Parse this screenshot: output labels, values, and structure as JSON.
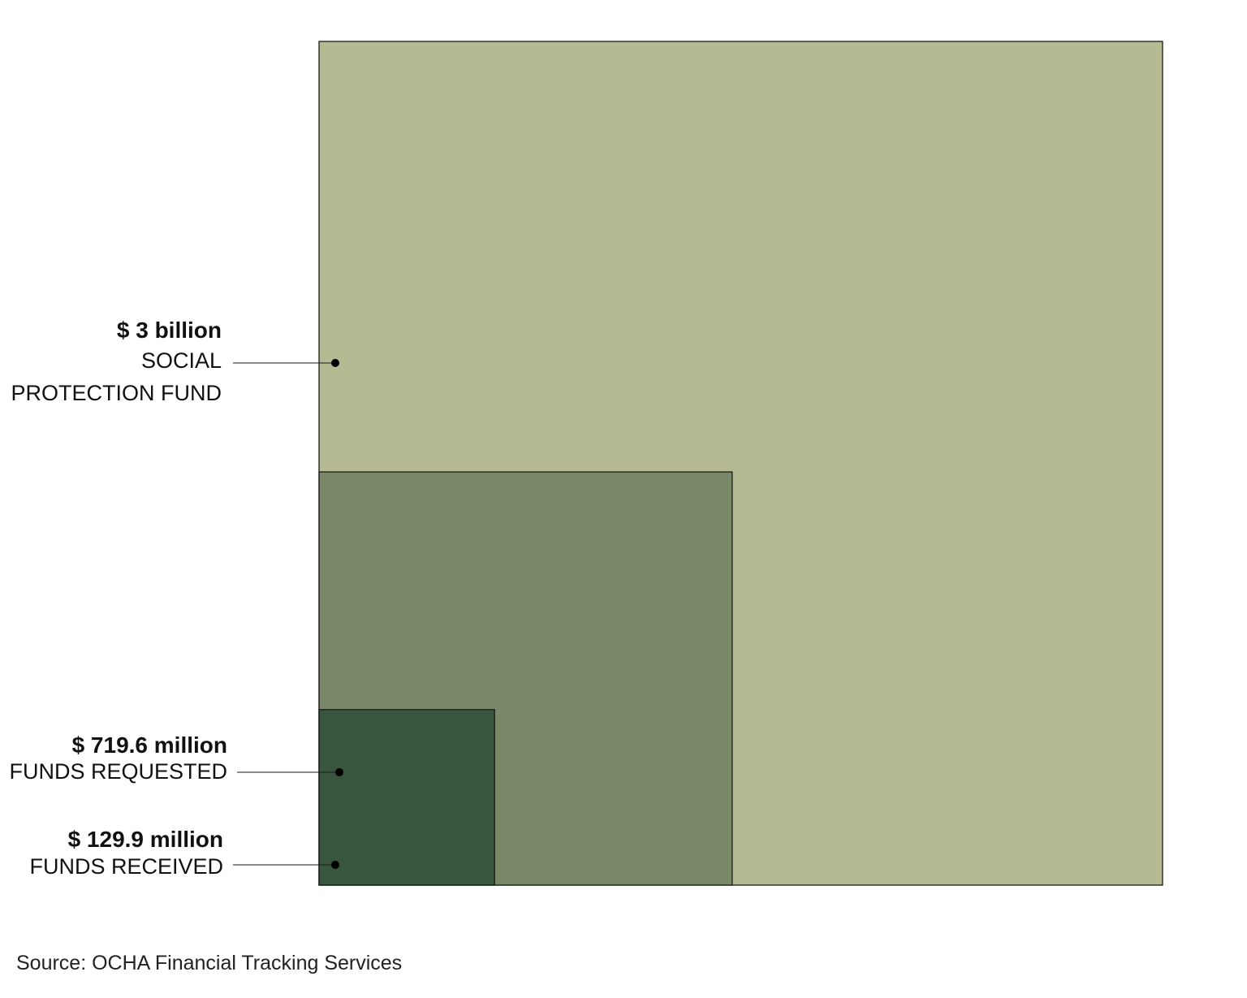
{
  "chart_data": {
    "type": "area",
    "unit": "USD",
    "items": [
      {
        "value": 3000000000,
        "amount": "$ 3 billion",
        "lines": [
          "SOCIAL",
          "PROTECTION FUND"
        ],
        "color": "#b5ba92"
      },
      {
        "value": 719600000,
        "amount": "$ 719.6 million",
        "lines": [
          "FUNDS REQUESTED"
        ],
        "color": "#788869"
      },
      {
        "value": 129900000,
        "amount": "$ 129.9 million",
        "lines": [
          "FUNDS RECEIVED"
        ],
        "color": "#37563d"
      }
    ]
  },
  "source": "Source: OCHA Financial Tracking Services"
}
